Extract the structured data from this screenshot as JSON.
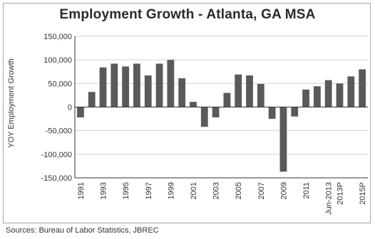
{
  "source_note": "Sources: Bureau of Labor Statistics, JBREC",
  "colors": {
    "bar": "#5a5a5a",
    "gridline": "#d0d0d0",
    "axis": "#333333",
    "frame": "#a8a8a8"
  },
  "chart_data": {
    "type": "bar",
    "title": "Employment Growth - Atlanta, GA MSA",
    "xlabel": "",
    "ylabel": "YOY Employment Growth",
    "ylim": [
      -150000,
      150000
    ],
    "yticks": [
      150000,
      100000,
      50000,
      0,
      -50000,
      -100000,
      -150000
    ],
    "ytick_labels": [
      "150,000",
      "100,000",
      "50,000",
      "0",
      "-50,000",
      "-100,000",
      "-150,000"
    ],
    "grid": true,
    "categories": [
      "1991",
      "1992",
      "1993",
      "1994",
      "1995",
      "1996",
      "1997",
      "1998",
      "1999",
      "2000",
      "2001",
      "2002",
      "2003",
      "2004",
      "2005",
      "2006",
      "2007",
      "2008",
      "2009",
      "2010",
      "2011",
      "2012",
      "Jun-2013",
      "2013P",
      "2014P",
      "2015P"
    ],
    "visible_xtick_labels": [
      "1991",
      "1993",
      "1995",
      "1997",
      "1999",
      "2001",
      "2003",
      "2005",
      "2007",
      "2009",
      "2011",
      "Jun-2013",
      "2013P",
      "2015P"
    ],
    "values": [
      -22000,
      32000,
      84000,
      92000,
      86000,
      92000,
      67000,
      92000,
      100000,
      61000,
      11000,
      -42000,
      -22000,
      30000,
      69000,
      67000,
      49000,
      -25000,
      -137000,
      -20000,
      37000,
      44000,
      57000,
      50000,
      65000,
      80000
    ]
  }
}
